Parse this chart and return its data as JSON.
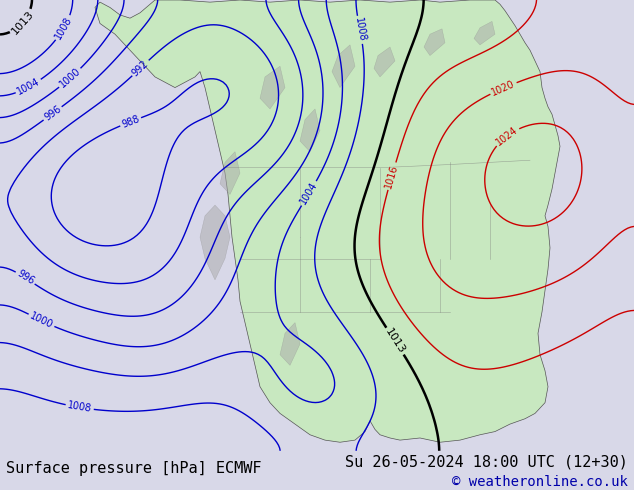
{
  "title": "",
  "bottom_left_text": "Surface pressure [hPa] ECMWF",
  "bottom_right_text": "Su 26-05-2024 18:00 UTC (12+30)",
  "copyright_text": "© weatheronline.co.uk",
  "bg_color": "#d8d8e8",
  "map_bg_color": "#e8e8f0",
  "land_color": "#c8e8c0",
  "ocean_color": "#e0e8f0",
  "contour_colors": {
    "below_1013": "#0000cc",
    "1013": "#000000",
    "above_1013": "#cc0000"
  },
  "bottom_bar_color": "#f0f0f0",
  "bottom_text_color": "#000000",
  "copyright_color": "#0000aa",
  "font_size_bottom": 11,
  "font_size_copyright": 10
}
